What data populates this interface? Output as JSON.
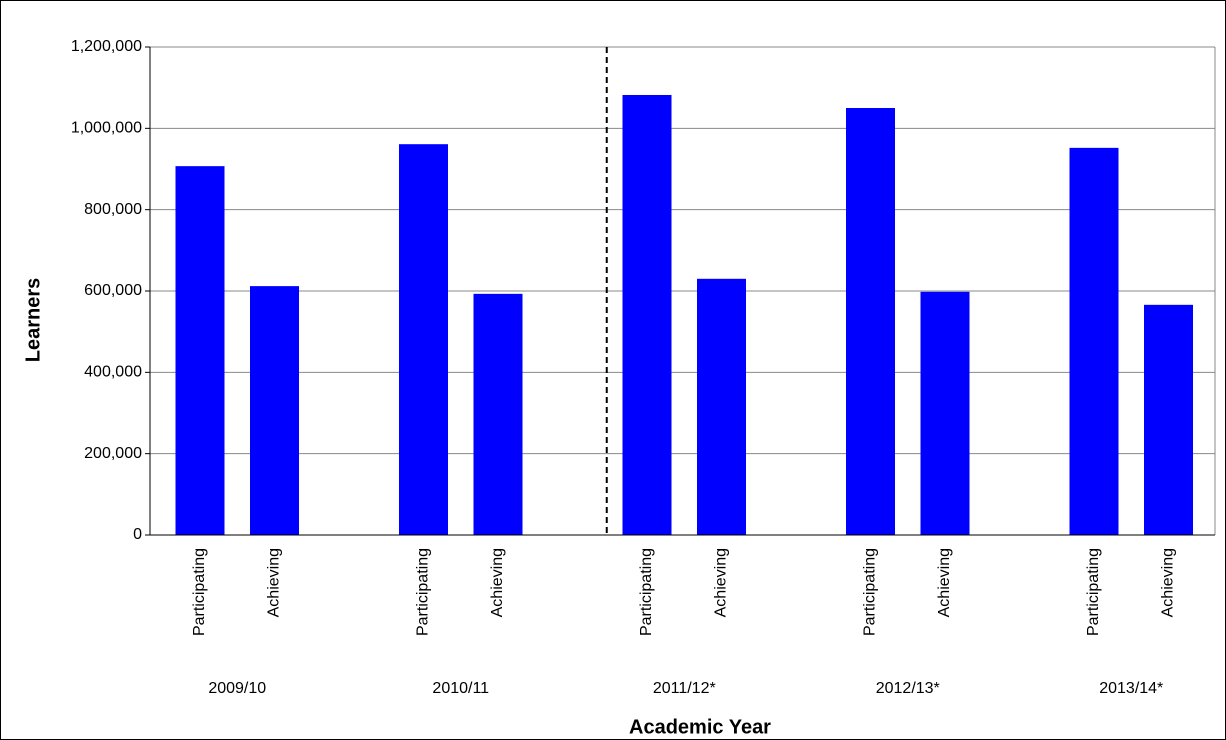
{
  "chart_data": {
    "type": "bar",
    "y_label": "Learners",
    "x_label": "Academic Year",
    "color": "#0000ff",
    "groups": [
      {
        "label": "2009/10",
        "categories": [
          "Participating",
          "Achieving"
        ],
        "values": [
          907000,
          612000
        ]
      },
      {
        "label": "2010/11",
        "categories": [
          "Participating",
          "Achieving"
        ],
        "values": [
          961000,
          593000
        ]
      },
      {
        "label": "2011/12*",
        "categories": [
          "Participating",
          "Achieving"
        ],
        "values": [
          1082000,
          630000
        ]
      },
      {
        "label": "2012/13*",
        "categories": [
          "Participating",
          "Achieving"
        ],
        "values": [
          1050000,
          598000
        ]
      },
      {
        "label": "2013/14*",
        "categories": [
          "Participating",
          "Achieving"
        ],
        "values": [
          952000,
          566000
        ]
      }
    ],
    "ylim": [
      0,
      1200000
    ],
    "yticks": [
      0,
      {
        "value": 200000,
        "label": "200,000"
      },
      {
        "value": 400000,
        "label": "400,000"
      },
      {
        "value": 600000,
        "label": "600,000"
      },
      {
        "value": 800000,
        "label": "800,000"
      },
      {
        "value": 1000000,
        "label": "1,000,000"
      },
      {
        "value": 1200000,
        "label": "1,200,000"
      }
    ],
    "grid": true
  }
}
